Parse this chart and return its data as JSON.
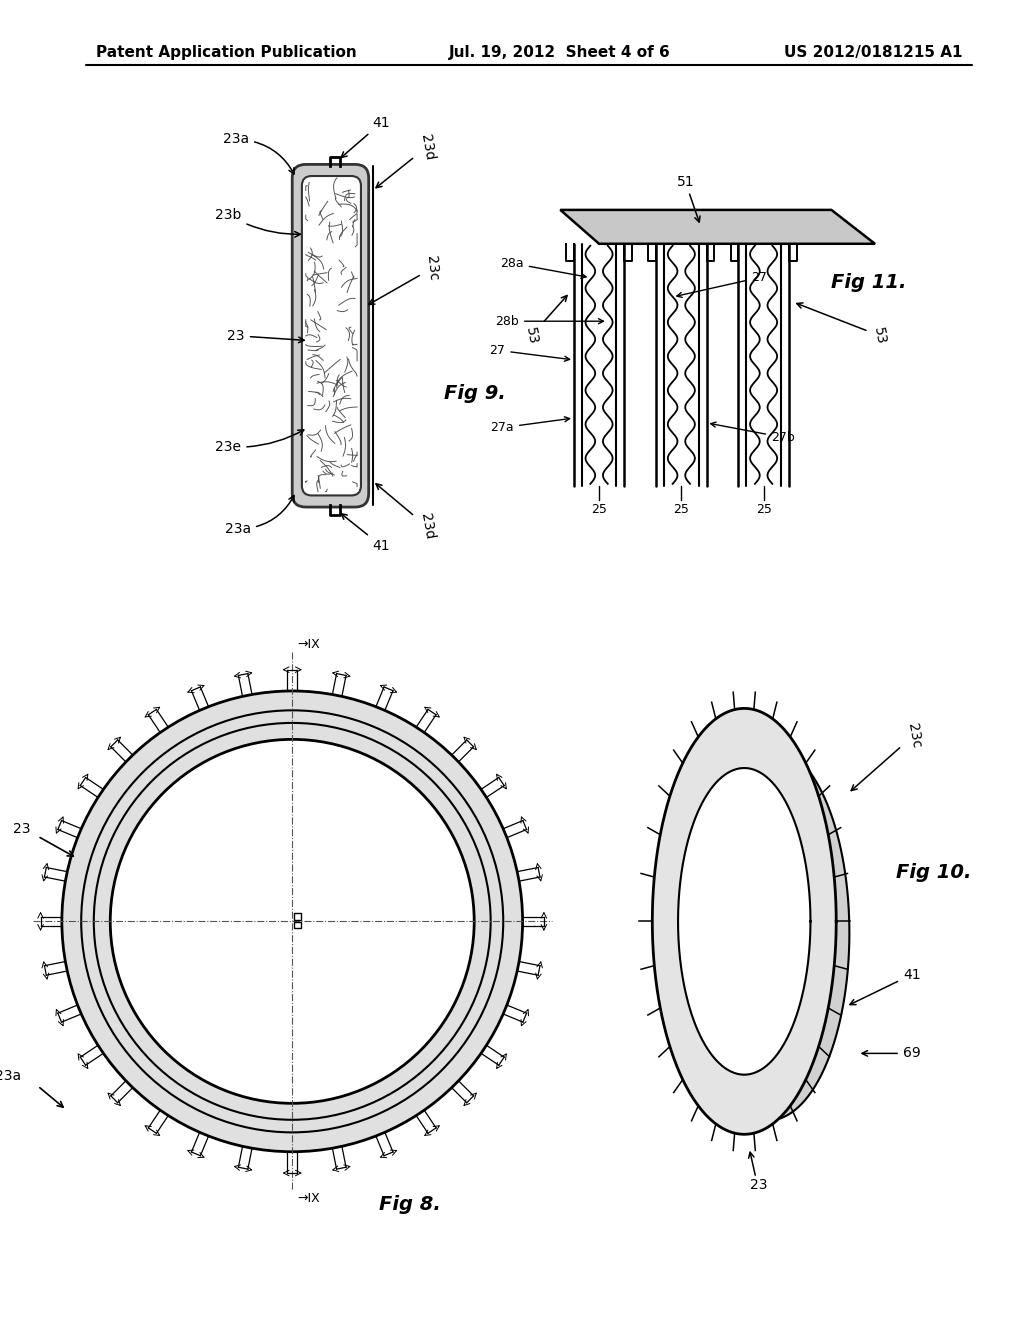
{
  "bg_color": "#ffffff",
  "header_left": "Patent Application Publication",
  "header_center": "Jul. 19, 2012  Sheet 4 of 6",
  "header_right": "US 2012/0181215 A1",
  "fig9_label": "Fig 9.",
  "fig8_label": "Fig 8.",
  "fig10_label": "Fig 10.",
  "fig11_label": "Fig 11."
}
